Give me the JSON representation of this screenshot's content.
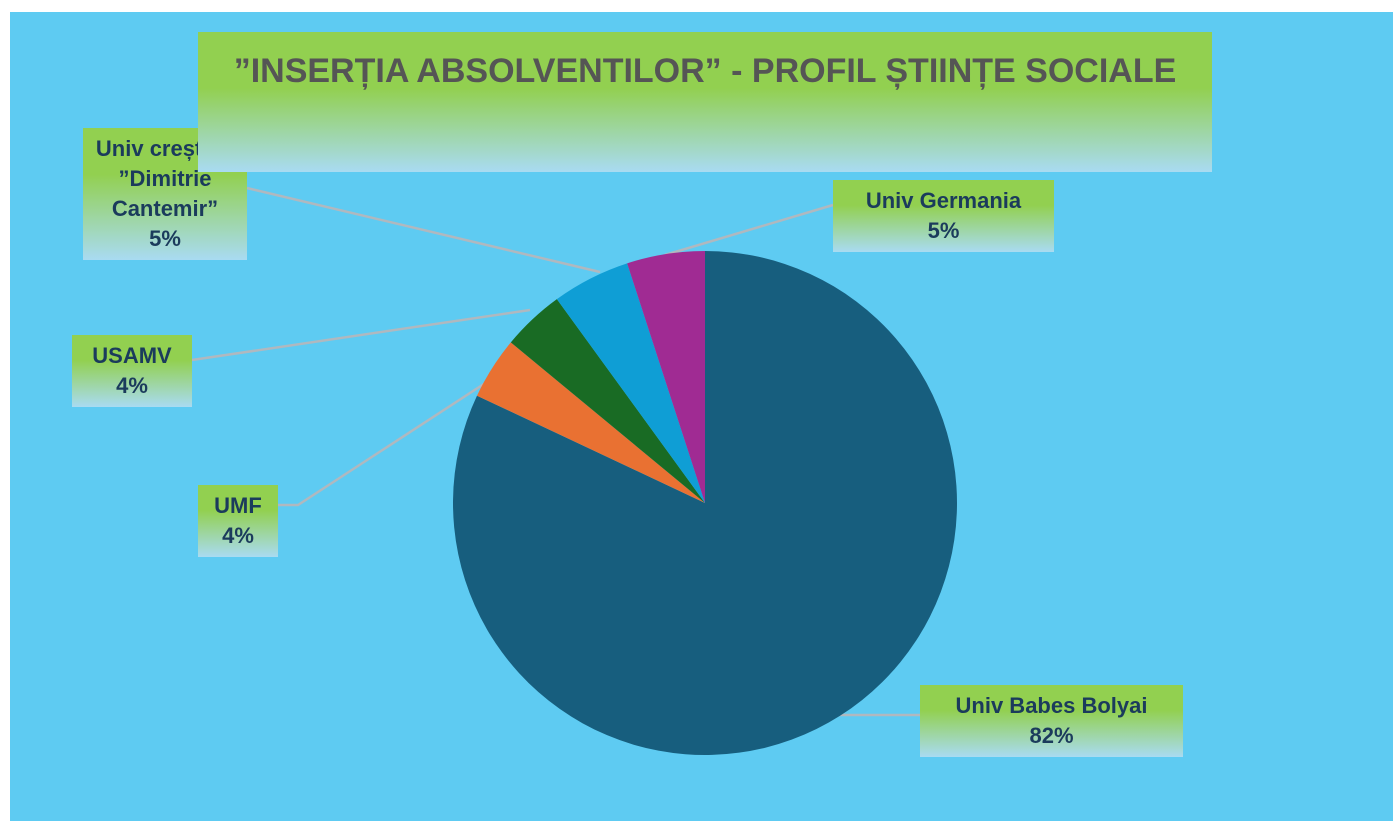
{
  "chart_data": {
    "type": "pie",
    "title": "”INSERȚIA ABSOLVENTILOR” - PROFIL ȘTIINȚE SOCIALE",
    "categories": [
      "Univ Babes Bolyai",
      "UMF",
      "USAMV",
      "Univ creștină ”Dimitrie Cantemir”",
      "Univ Germania"
    ],
    "values": [
      82,
      4,
      4,
      5,
      5
    ],
    "value_labels": [
      "82%",
      "4%",
      "4%",
      "5%",
      "5%"
    ],
    "colors": [
      "#175e7e",
      "#e97132",
      "#196b24",
      "#0f9ed5",
      "#a02b93"
    ]
  }
}
